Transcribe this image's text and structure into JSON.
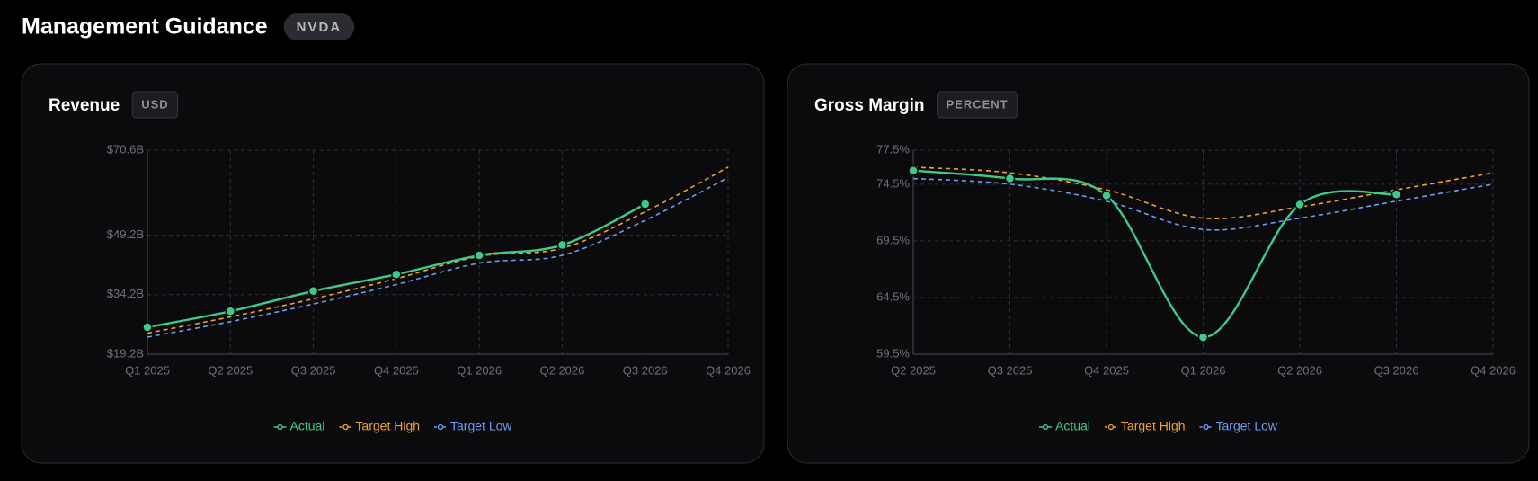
{
  "header": {
    "title": "Management Guidance",
    "ticker": "NVDA"
  },
  "chart_data": [
    {
      "type": "line",
      "title": "Revenue",
      "unit": "USD",
      "categories": [
        "Q1 2025",
        "Q2 2025",
        "Q3 2025",
        "Q4 2025",
        "Q1 2026",
        "Q2 2026",
        "Q3 2026",
        "Q4 2026"
      ],
      "ylim": [
        19.2,
        70.6
      ],
      "yticks": [
        {
          "value": 19.2,
          "label": "$19.2B"
        },
        {
          "value": 34.2,
          "label": "$34.2B"
        },
        {
          "value": 49.2,
          "label": "$49.2B"
        },
        {
          "value": 70.6,
          "label": "$70.6B"
        }
      ],
      "grid": true,
      "legend": "bottom",
      "series": [
        {
          "name": "Actual",
          "color": "#3fca8b",
          "line_style": "solid",
          "markers": true,
          "values": [
            26.0,
            30.0,
            35.1,
            39.3,
            44.1,
            46.7,
            57.0,
            null
          ]
        },
        {
          "name": "Target High",
          "color": "#f0a232",
          "line_style": "dashed",
          "markers": false,
          "values": [
            24.5,
            28.6,
            33.15,
            38.25,
            43.86,
            45.9,
            55.08,
            66.3
          ]
        },
        {
          "name": "Target Low",
          "color": "#6d9cf0",
          "line_style": "dashed",
          "markers": false,
          "values": [
            23.5,
            27.4,
            31.85,
            36.75,
            42.14,
            44.1,
            52.92,
            63.7
          ]
        }
      ]
    },
    {
      "type": "line",
      "title": "Gross Margin",
      "unit": "PERCENT",
      "categories": [
        "Q2 2025",
        "Q3 2025",
        "Q4 2025",
        "Q1 2026",
        "Q2 2026",
        "Q3 2026",
        "Q4 2026"
      ],
      "ylim": [
        59.5,
        77.5
      ],
      "yticks": [
        {
          "value": 59.5,
          "label": "59.5%"
        },
        {
          "value": 64.5,
          "label": "64.5%"
        },
        {
          "value": 69.5,
          "label": "69.5%"
        },
        {
          "value": 74.5,
          "label": "74.5%"
        },
        {
          "value": 77.5,
          "label": "77.5%"
        }
      ],
      "grid": true,
      "legend": "bottom",
      "series": [
        {
          "name": "Actual",
          "color": "#3fca8b",
          "line_style": "solid",
          "markers": true,
          "values": [
            75.7,
            75.0,
            73.5,
            61.0,
            72.7,
            73.6,
            null
          ]
        },
        {
          "name": "Target High",
          "color": "#f0a232",
          "line_style": "dashed",
          "markers": false,
          "values": [
            76.0,
            75.5,
            74.0,
            71.5,
            72.5,
            74.0,
            75.5
          ]
        },
        {
          "name": "Target Low",
          "color": "#6d9cf0",
          "line_style": "dashed",
          "markers": false,
          "values": [
            75.0,
            74.5,
            73.0,
            70.5,
            71.5,
            73.0,
            74.5
          ]
        }
      ]
    }
  ]
}
